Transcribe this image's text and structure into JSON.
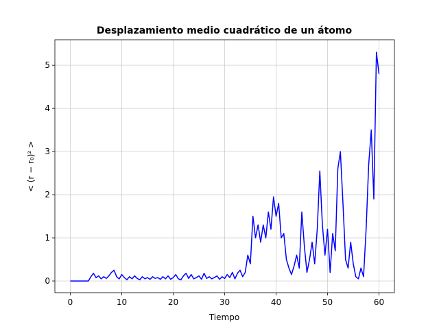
{
  "chart_data": {
    "type": "line",
    "title": "Desplazamiento medio cuadrático de un átomo",
    "xlabel": "Tiempo",
    "ylabel": "< (r − r₀)² >",
    "x": [
      0,
      0.5,
      1,
      1.5,
      2,
      2.5,
      3,
      3.5,
      4,
      4.5,
      5,
      5.5,
      6,
      6.5,
      7,
      7.5,
      8,
      8.5,
      9,
      9.5,
      10,
      10.5,
      11,
      11.5,
      12,
      12.5,
      13,
      13.5,
      14,
      14.5,
      15,
      15.5,
      16,
      16.5,
      17,
      17.5,
      18,
      18.5,
      19,
      19.5,
      20,
      20.5,
      21,
      21.5,
      22,
      22.5,
      23,
      23.5,
      24,
      24.5,
      25,
      25.5,
      26,
      26.5,
      27,
      27.5,
      28,
      28.5,
      29,
      29.5,
      30,
      30.5,
      31,
      31.5,
      32,
      32.5,
      33,
      33.5,
      34,
      34.5,
      35,
      35.5,
      36,
      36.5,
      37,
      37.5,
      38,
      38.5,
      39,
      39.5,
      40,
      40.5,
      41,
      41.5,
      42,
      42.5,
      43,
      43.5,
      44,
      44.5,
      45,
      45.5,
      46,
      46.5,
      47,
      47.5,
      48,
      48.5,
      49,
      49.5,
      50,
      50.5,
      51,
      51.5,
      52,
      52.5,
      53,
      53.5,
      54,
      54.5,
      55,
      55.5,
      56,
      56.5,
      57,
      57.5,
      58,
      58.5,
      59,
      59.5,
      60
    ],
    "series": [
      {
        "color": "#0000ff",
        "values": [
          0,
          0,
          0,
          0,
          0,
          0,
          0,
          0,
          0.1,
          0.18,
          0.08,
          0.12,
          0.05,
          0.1,
          0.06,
          0.12,
          0.2,
          0.25,
          0.1,
          0.05,
          0.15,
          0.08,
          0.03,
          0.1,
          0.05,
          0.12,
          0.06,
          0.03,
          0.1,
          0.05,
          0.08,
          0.04,
          0.1,
          0.06,
          0.08,
          0.04,
          0.1,
          0.05,
          0.12,
          0.04,
          0.08,
          0.15,
          0.05,
          0.03,
          0.12,
          0.18,
          0.06,
          0.15,
          0.05,
          0.08,
          0.12,
          0.04,
          0.18,
          0.06,
          0.1,
          0.05,
          0.08,
          0.12,
          0.04,
          0.1,
          0.06,
          0.15,
          0.08,
          0.2,
          0.05,
          0.18,
          0.25,
          0.1,
          0.2,
          0.6,
          0.4,
          1.5,
          1.0,
          1.3,
          0.9,
          1.3,
          1.0,
          1.6,
          1.2,
          1.95,
          1.5,
          1.8,
          1.0,
          1.1,
          0.5,
          0.3,
          0.15,
          0.35,
          0.6,
          0.3,
          1.6,
          0.8,
          0.2,
          0.5,
          0.9,
          0.4,
          1.2,
          2.55,
          1.3,
          0.6,
          1.2,
          0.2,
          1.1,
          0.7,
          2.6,
          3.0,
          1.8,
          0.5,
          0.3,
          0.9,
          0.4,
          0.1,
          0.05,
          0.3,
          0.1,
          1.2,
          2.7,
          3.5,
          1.9,
          5.3,
          4.8
        ]
      }
    ],
    "xlim": [
      -3,
      63
    ],
    "xticks": [
      0,
      10,
      20,
      30,
      40,
      50,
      60
    ],
    "ylim": [
      -0.27,
      5.59
    ],
    "yticks": [
      0,
      1,
      2,
      3,
      4,
      5
    ],
    "grid": true
  }
}
